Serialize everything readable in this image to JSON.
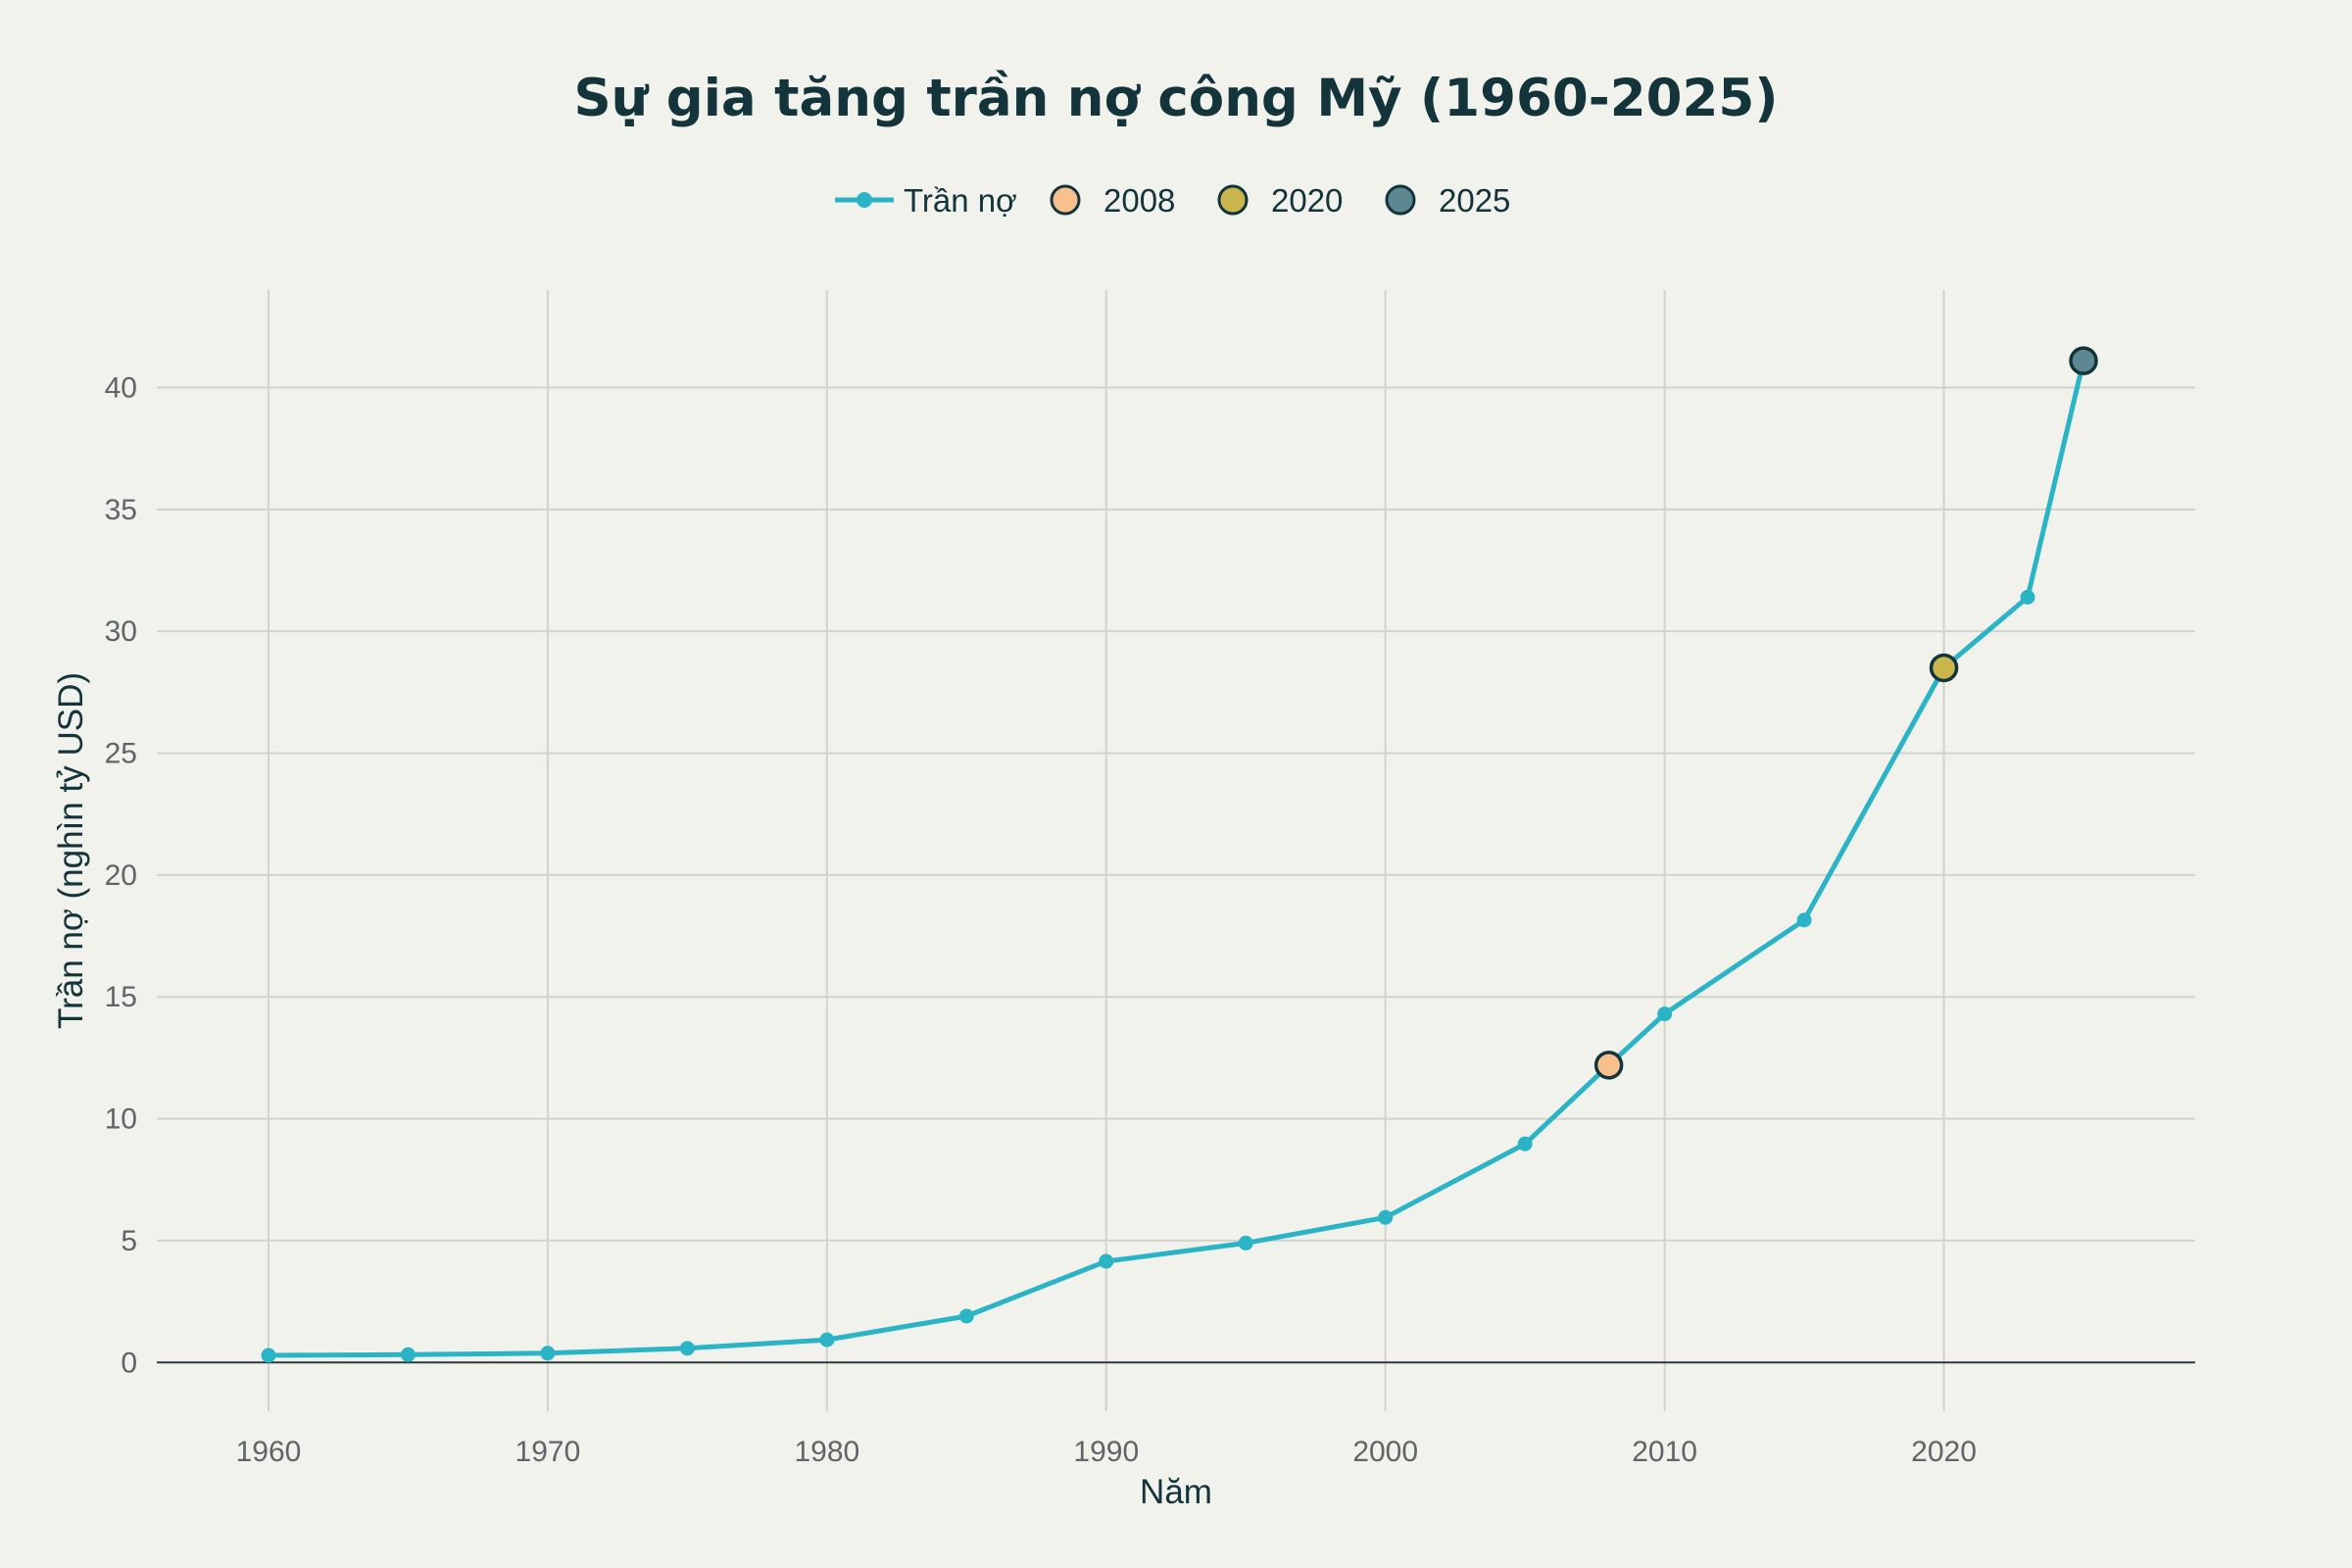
{
  "chart_data": {
    "type": "line",
    "title": "Sự gia tăng trần nợ công Mỹ (1960-2025)",
    "xlabel": "Năm",
    "ylabel": "Trần nợ (nghìn tỷ USD)",
    "xlim": [
      1956,
      2029
    ],
    "ylim": [
      -2,
      44
    ],
    "x_ticks": [
      1960,
      1970,
      1980,
      1990,
      2000,
      2010,
      2020
    ],
    "x_tick_labels": [
      "1960",
      "1970",
      "1980",
      "1990",
      "2000",
      "2010",
      "2020"
    ],
    "y_ticks": [
      0,
      5,
      10,
      15,
      20,
      25,
      30,
      35,
      40
    ],
    "y_tick_labels": [
      "0",
      "5",
      "10",
      "15",
      "20",
      "25",
      "30",
      "35",
      "40"
    ],
    "grid": true,
    "legend_position": "top-center, horizontal",
    "series": [
      {
        "name": "Trần nợ",
        "color": "#2bb4c6",
        "x": [
          1960,
          1965,
          1970,
          1975,
          1980,
          1985,
          1990,
          1995,
          2000,
          2005,
          2008,
          2010,
          2015,
          2020,
          2023,
          2025
        ],
        "y": [
          0.29,
          0.32,
          0.38,
          0.58,
          0.93,
          1.9,
          4.15,
          4.9,
          5.95,
          8.97,
          12.2,
          14.3,
          18.15,
          28.5,
          31.4,
          41.1
        ]
      }
    ],
    "highlights": [
      {
        "name": "2008",
        "x": 2008,
        "y": 12.2,
        "color": "#f8c08c"
      },
      {
        "name": "2020",
        "x": 2020,
        "y": 28.5,
        "color": "#c8b54c"
      },
      {
        "name": "2025",
        "x": 2025,
        "y": 41.1,
        "color": "#5d8791"
      }
    ]
  }
}
